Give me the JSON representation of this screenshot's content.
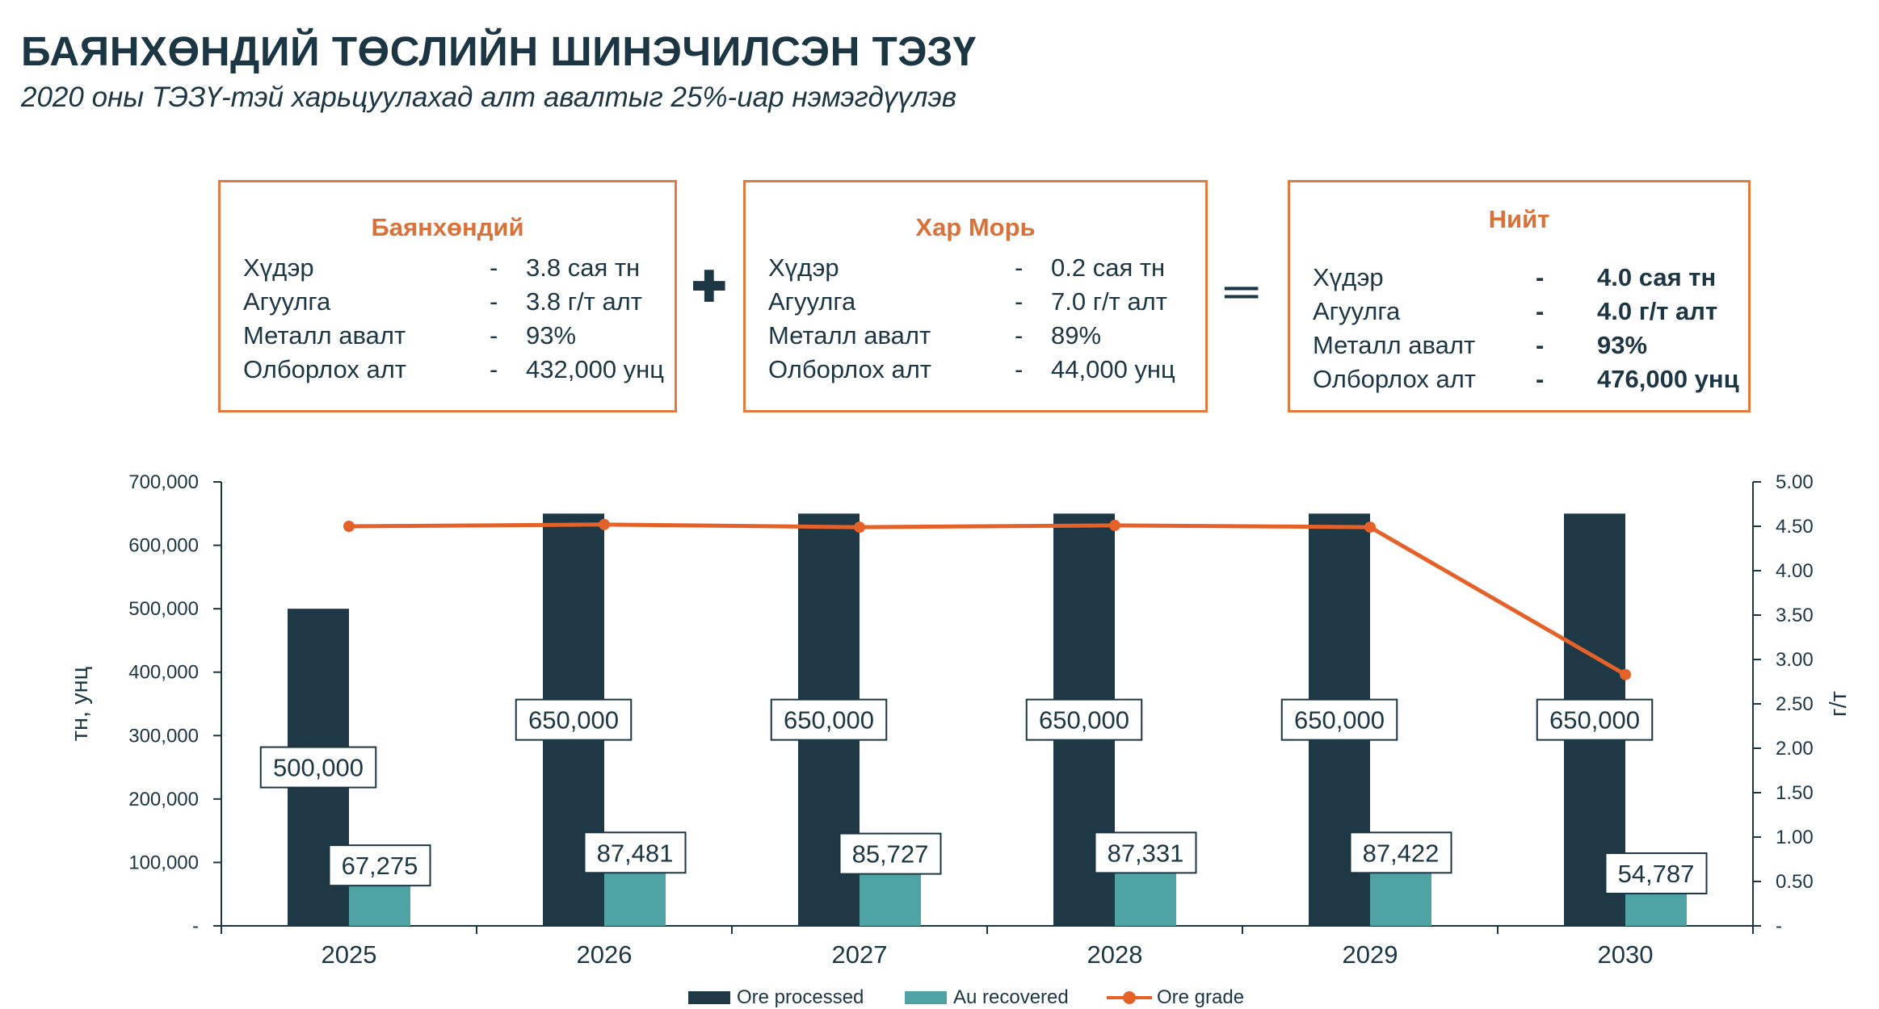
{
  "header": {
    "title": "БАЯНХӨНДИЙ ТӨСЛИЙН ШИНЭЧИЛСЭН ТЭЗҮ",
    "subtitle": "2020 оны ТЭЗҮ-тэй харьцуулахад алт авалтыг 25%-иар нэмэгдүүлэв"
  },
  "summary": {
    "plus_symbol": "✚",
    "equals_symbol": "═",
    "boxes": [
      {
        "title": "Баянхөндий",
        "rows": [
          {
            "label": "Хүдэр",
            "dash": "-",
            "value": "3.8 сая тн"
          },
          {
            "label": "Агуулга",
            "dash": "-",
            "value": "3.8 г/т алт"
          },
          {
            "label": "Металл авалт",
            "dash": "-",
            "value": "93%"
          },
          {
            "label": "Олборлох алт",
            "dash": "-",
            "value": "432,000 унц"
          }
        ]
      },
      {
        "title": "Хар Морь",
        "rows": [
          {
            "label": "Хүдэр",
            "dash": "-",
            "value": "0.2 сая тн"
          },
          {
            "label": "Агуулга",
            "dash": "-",
            "value": "7.0 г/т алт"
          },
          {
            "label": "Металл авалт",
            "dash": "-",
            "value": "89%"
          },
          {
            "label": "Олборлох алт",
            "dash": "-",
            "value": "44,000 унц"
          }
        ]
      },
      {
        "title": "Нийт",
        "rows": [
          {
            "label": "Хүдэр",
            "dash": "-",
            "value": "4.0 сая тн"
          },
          {
            "label": "Агуулга",
            "dash": "-",
            "value": "4.0 г/т алт"
          },
          {
            "label": "Металл авалт",
            "dash": "-",
            "value": "93%"
          },
          {
            "label": "Олборлох алт",
            "dash": "-",
            "value": "476,000 унц"
          }
        ]
      }
    ]
  },
  "colors": {
    "ore_processed": "#1e3845",
    "au_recovered": "#4fa3a5",
    "ore_grade": "#e4622a",
    "box_border": "#e07a3f",
    "text": "#1d3644"
  },
  "chart_data": {
    "type": "bar",
    "categories": [
      "2025",
      "2026",
      "2027",
      "2028",
      "2029",
      "2030"
    ],
    "ylabel": "тн, унц",
    "y2label": "г/т",
    "ylim": [
      0,
      700000
    ],
    "y2lim": [
      0,
      5.0
    ],
    "yticks": [
      "-",
      "100,000",
      "200,000",
      "300,000",
      "400,000",
      "500,000",
      "600,000",
      "700,000"
    ],
    "y2ticks": [
      "-",
      "0.50",
      "1.00",
      "1.50",
      "2.00",
      "2.50",
      "3.00",
      "3.50",
      "4.00",
      "4.50",
      "5.00"
    ],
    "grid": false,
    "legend_position": "bottom",
    "series": [
      {
        "name": "Ore processed",
        "kind": "bar",
        "axis": "left",
        "values": [
          500000,
          650000,
          650000,
          650000,
          650000,
          650000
        ],
        "labels": [
          "500,000",
          "650,000",
          "650,000",
          "650,000",
          "650,000",
          "650,000"
        ]
      },
      {
        "name": "Au recovered",
        "kind": "bar",
        "axis": "left",
        "values": [
          67275,
          87481,
          85727,
          87331,
          87422,
          54787
        ],
        "labels": [
          "67,275",
          "87,481",
          "85,727",
          "87,331",
          "87,422",
          "54,787"
        ]
      },
      {
        "name": "Ore grade",
        "kind": "line",
        "axis": "right",
        "values": [
          4.5,
          4.52,
          4.49,
          4.51,
          4.49,
          2.83
        ]
      }
    ]
  }
}
